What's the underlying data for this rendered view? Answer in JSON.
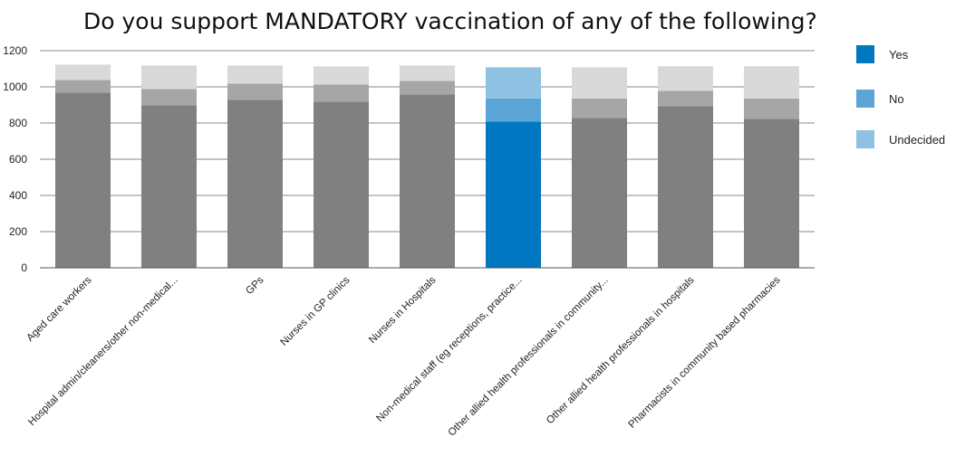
{
  "chart_data": {
    "type": "bar",
    "stacked": true,
    "title": "Do you support MANDATORY vaccination of any of the following?",
    "xlabel": "",
    "ylabel": "",
    "ylim": [
      0,
      1200
    ],
    "yticks": [
      0,
      200,
      400,
      600,
      800,
      1000,
      1200
    ],
    "grid": true,
    "legend_position": "right",
    "categories": [
      "Aged care workers",
      "Hospital admin/cleaners/other non-medical...",
      "GPs",
      "Nurses in GP clinics",
      "Nurses in Hospitals",
      "Non-medical staff (eg receptions, practice...",
      "Other allied health professionals in community...",
      "Other allied health professionals in hospitals",
      "Pharmacists in community based pharmacies"
    ],
    "highlight_index": 5,
    "series": [
      {
        "name": "Yes",
        "values": [
          968,
          898,
          928,
          918,
          958,
          808,
          828,
          893,
          823
        ]
      },
      {
        "name": "No",
        "values": [
          70,
          90,
          90,
          95,
          75,
          128,
          108,
          85,
          113
        ]
      },
      {
        "name": "Undecided",
        "values": [
          85,
          130,
          100,
          100,
          85,
          172,
          172,
          136,
          178
        ]
      }
    ],
    "colors": {
      "highlight": [
        "#0077c0",
        "#5ba4d6",
        "#8fc2e2"
      ],
      "muted": [
        "#808080",
        "#a6a6a6",
        "#d9d9d9"
      ],
      "legend": [
        "#0077c0",
        "#5ba4d6",
        "#8fc2e2"
      ],
      "grid": "#888888"
    }
  }
}
